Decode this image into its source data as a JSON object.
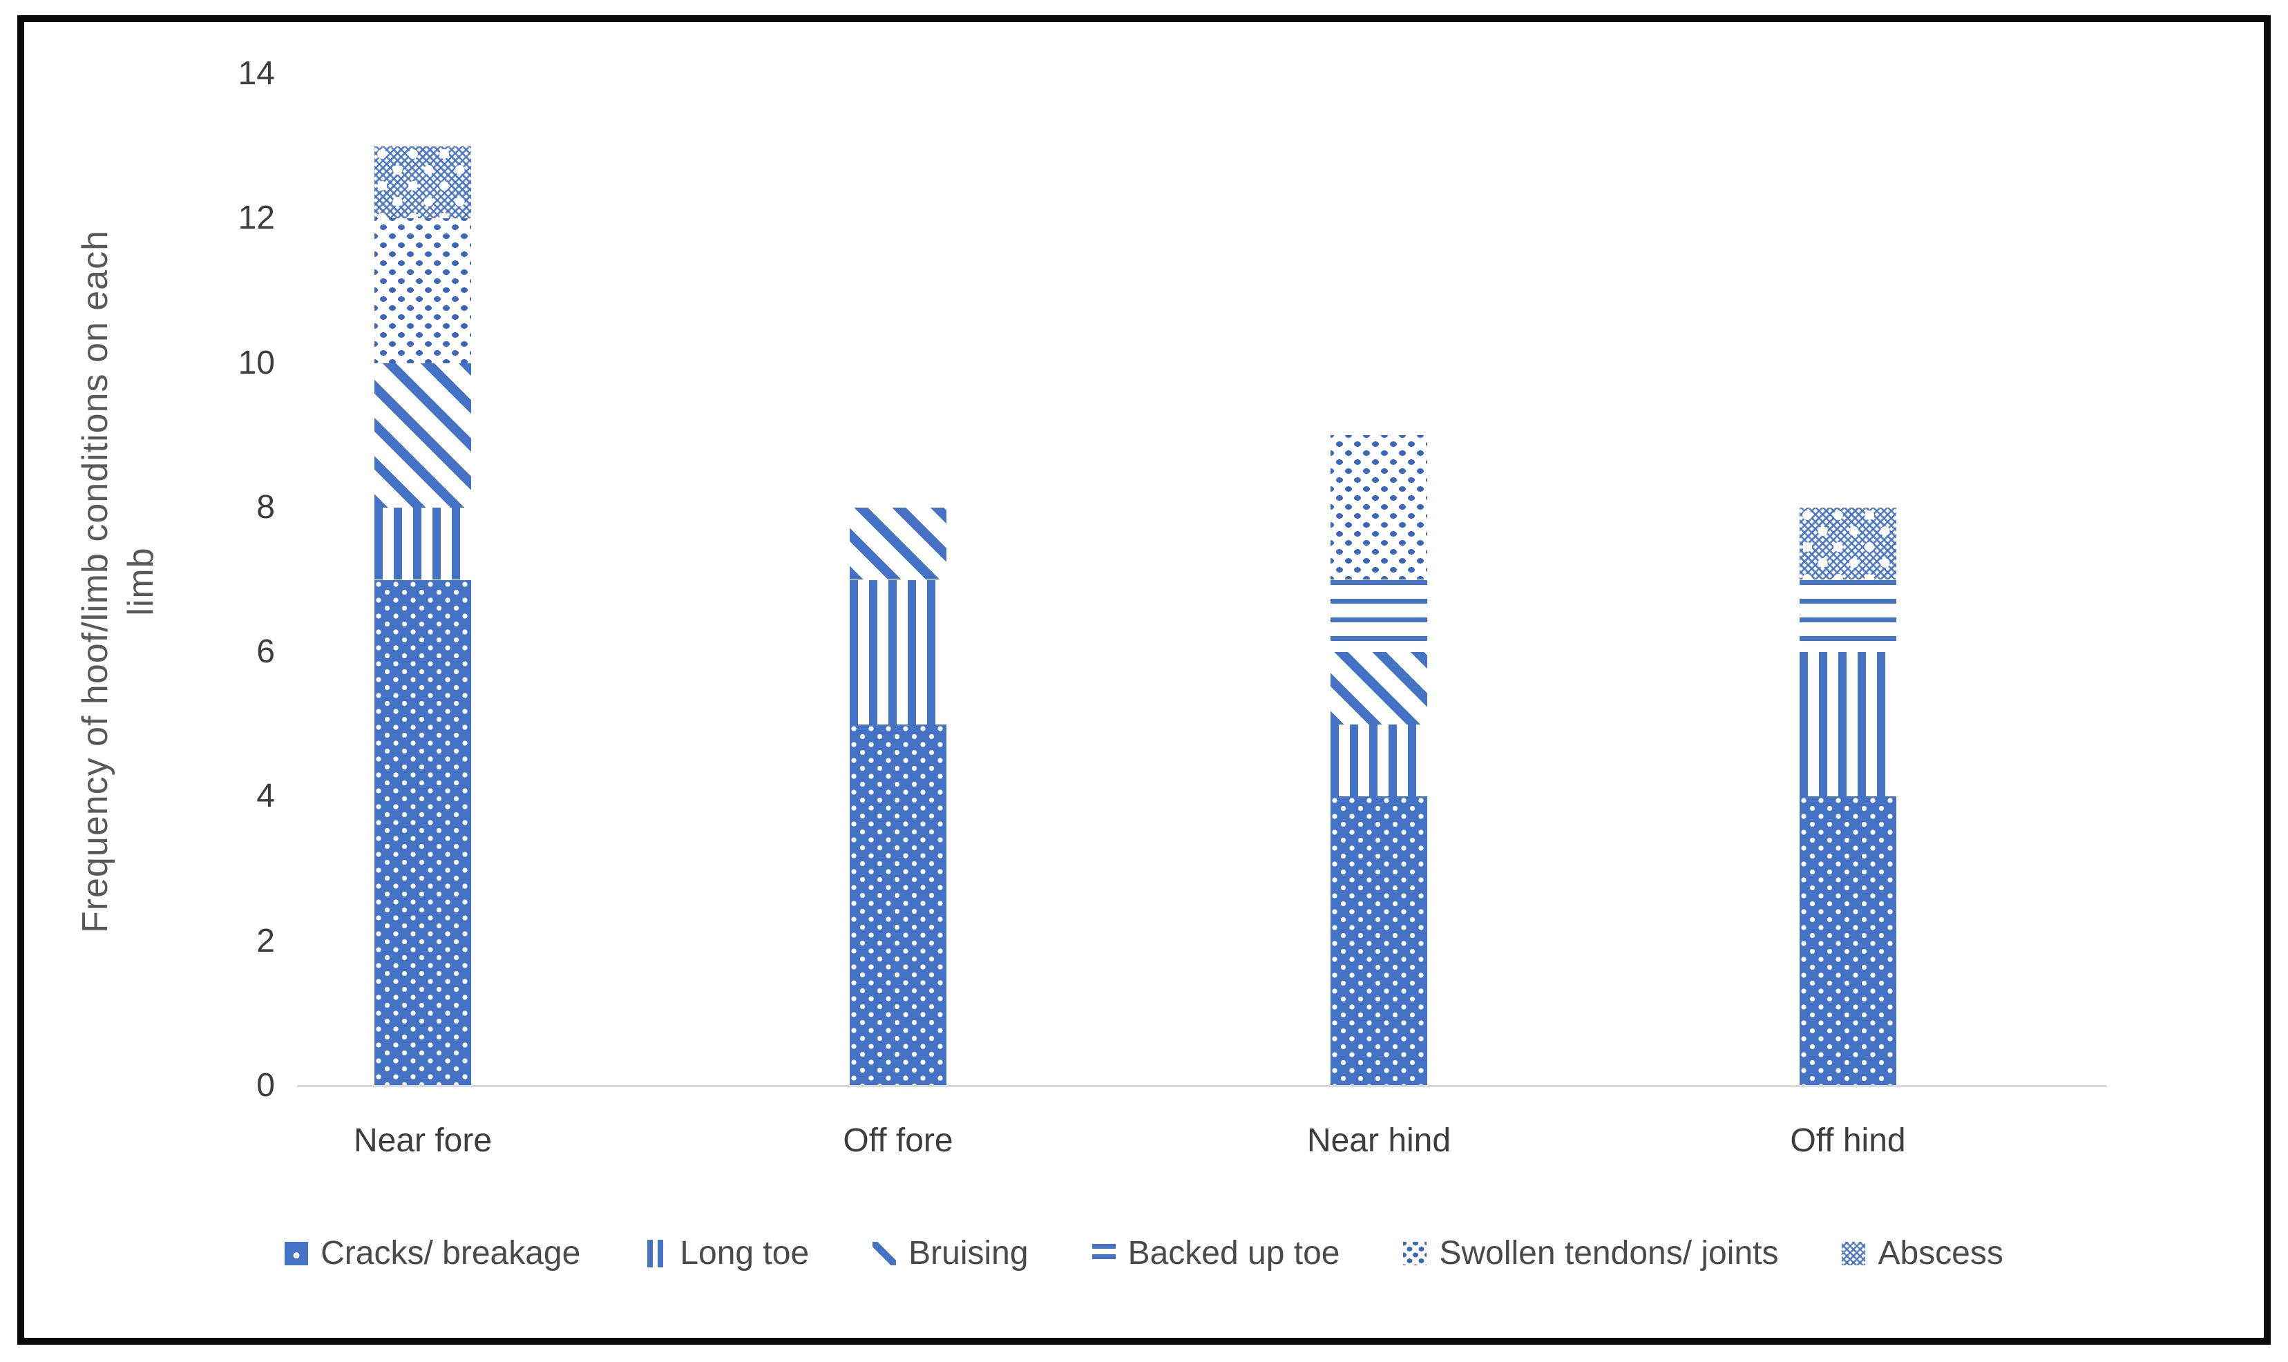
{
  "figure": {
    "border_color": "#0b0b0b",
    "background_color": "#ffffff"
  },
  "chart_data": {
    "type": "bar",
    "stacked": true,
    "title": "",
    "xlabel": "",
    "ylabel": "Frequency of hoof/limb conditions on each limb",
    "ylabel_lines": [
      "Frequency of hoof/limb conditions on each",
      "limb"
    ],
    "categories": [
      "Near fore",
      "Off fore",
      "Near hind",
      "Off hind"
    ],
    "series": [
      {
        "name": "Cracks/ breakage",
        "pattern": "cracks",
        "values": [
          7,
          5,
          4,
          4
        ]
      },
      {
        "name": "Long toe",
        "pattern": "longtoe",
        "values": [
          1,
          2,
          1,
          2
        ]
      },
      {
        "name": "Bruising",
        "pattern": "bruising",
        "values": [
          2,
          1,
          1,
          0
        ]
      },
      {
        "name": "Backed up toe",
        "pattern": "backedup",
        "values": [
          0,
          0,
          1,
          1
        ]
      },
      {
        "name": "Swollen tendons/ joints",
        "pattern": "swollen",
        "values": [
          2,
          0,
          2,
          0
        ]
      },
      {
        "name": "Abscess",
        "pattern": "abscess",
        "values": [
          1,
          0,
          0,
          1
        ]
      }
    ],
    "stack_totals": [
      13,
      8,
      9,
      8
    ],
    "ylim": [
      0,
      14
    ],
    "yticks": [
      0,
      2,
      4,
      6,
      8,
      10,
      12,
      14
    ],
    "grid": false,
    "legend_position": "bottom",
    "accent_color": "#4472C4",
    "axis_line_color": "#D9D9D9",
    "tick_text_color": "#3d3d3d",
    "axis_title_color": "#595959",
    "legend_text_color": "#4a4a4a"
  }
}
